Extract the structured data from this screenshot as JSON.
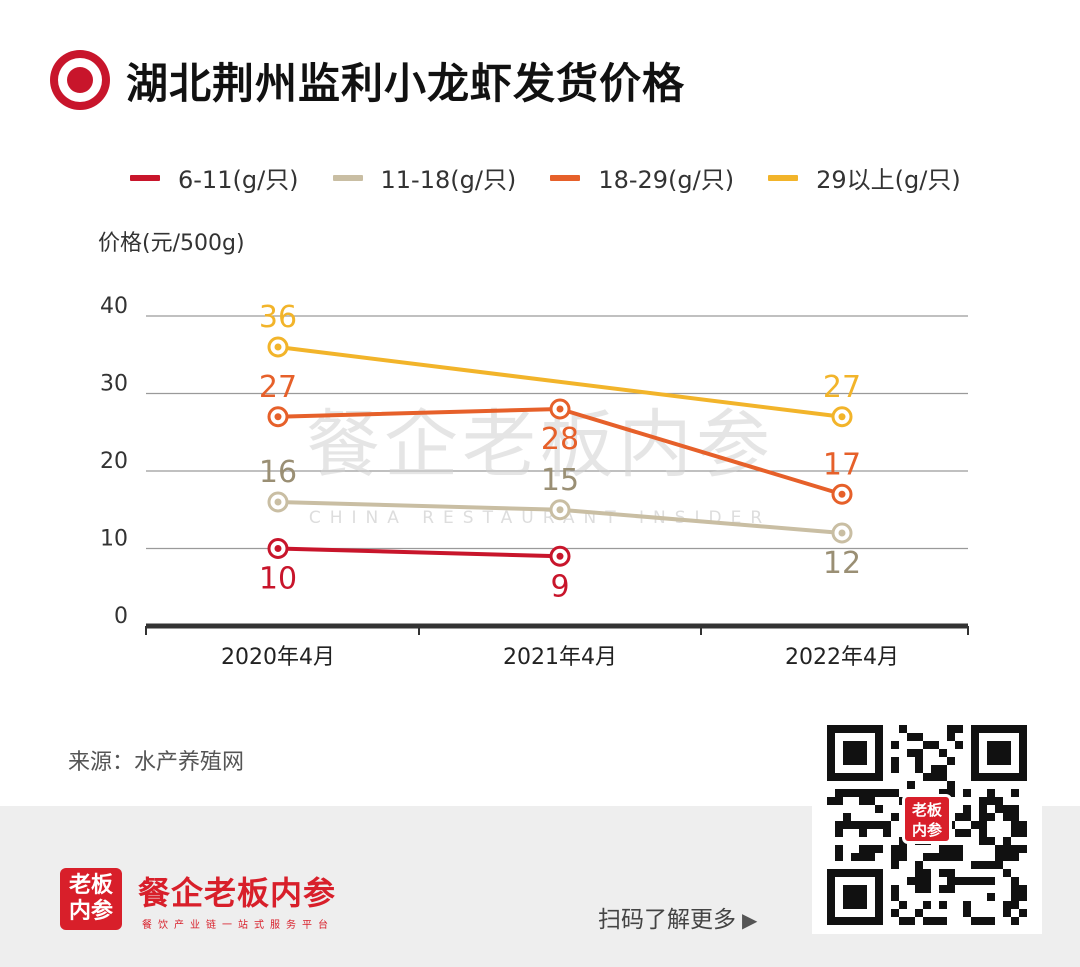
{
  "title": "湖北荆州监利小龙虾发货价格",
  "legend": [
    {
      "label": "6-11(g/只)",
      "color": "#c8152b"
    },
    {
      "label": "11-18(g/只)",
      "color": "#c9bea3"
    },
    {
      "label": "18-29(g/只)",
      "color": "#e6602a"
    },
    {
      "label": "29以上(g/只)",
      "color": "#f2b42a"
    }
  ],
  "chart_data": {
    "type": "line",
    "ylabel": "价格(元/500g)",
    "xlabel": "",
    "categories": [
      "2020年4月",
      "2021年4月",
      "2022年4月"
    ],
    "ylim": [
      0,
      40
    ],
    "yticks": [
      0,
      10,
      20,
      30,
      40
    ],
    "grid": true,
    "legend_position": "top",
    "series": [
      {
        "name": "6-11(g/只)",
        "color": "#c8152b",
        "values": [
          10,
          9,
          null
        ]
      },
      {
        "name": "11-18(g/只)",
        "color": "#c9bea3",
        "values": [
          16,
          15,
          12
        ]
      },
      {
        "name": "18-29(g/只)",
        "color": "#e6602a",
        "values": [
          27,
          28,
          17
        ]
      },
      {
        "name": "29以上(g/只)",
        "color": "#f2b42a",
        "values": [
          36,
          null,
          27
        ]
      }
    ]
  },
  "watermark": {
    "main": "餐企老板内参",
    "sub": "CHINA RESTAURANT INSIDER"
  },
  "source": "来源：水产养殖网",
  "footer": {
    "logo_text": "老板内参",
    "brand": "餐企老板内参",
    "tagline": "餐饮产业链一站式服务平台",
    "scan": "扫码了解更多",
    "arrow_icon": "triangle-right-icon",
    "qr_badge": "老板内参"
  }
}
